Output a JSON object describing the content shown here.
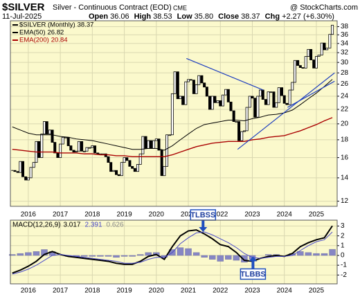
{
  "chart_data": [
    {
      "type": "candlestick",
      "title": "$SILVER",
      "subtitle": "Silver - Continuous Contract (EOD)",
      "exchange": "CME",
      "source": "@ StockCharts.com",
      "date": "11-Jul-2025",
      "quote": [
        {
          "label": "Open",
          "value": "36.06"
        },
        {
          "label": "High",
          "value": "38.53"
        },
        {
          "label": "Low",
          "value": "35.80"
        },
        {
          "label": "Close",
          "value": "38.37"
        },
        {
          "label": "Chg",
          "value": "+2.27 (+6.30%)"
        }
      ],
      "x": [
        2015.5,
        2015.58,
        2015.67,
        2015.75,
        2015.83,
        2015.92,
        2016.0,
        2016.08,
        2016.17,
        2016.25,
        2016.33,
        2016.42,
        2016.5,
        2016.58,
        2016.67,
        2016.75,
        2016.83,
        2016.92,
        2017.0,
        2017.08,
        2017.17,
        2017.25,
        2017.33,
        2017.42,
        2017.5,
        2017.58,
        2017.67,
        2017.75,
        2017.83,
        2017.92,
        2018.0,
        2018.08,
        2018.17,
        2018.25,
        2018.33,
        2018.42,
        2018.5,
        2018.58,
        2018.67,
        2018.75,
        2018.83,
        2018.92,
        2019.0,
        2019.08,
        2019.17,
        2019.25,
        2019.33,
        2019.42,
        2019.5,
        2019.58,
        2019.67,
        2019.75,
        2019.83,
        2019.92,
        2020.0,
        2020.08,
        2020.17,
        2020.25,
        2020.33,
        2020.42,
        2020.5,
        2020.58,
        2020.67,
        2020.75,
        2020.83,
        2020.92,
        2021.0,
        2021.08,
        2021.17,
        2021.25,
        2021.33,
        2021.42,
        2021.5,
        2021.58,
        2021.67,
        2021.75,
        2021.83,
        2021.92,
        2022.0,
        2022.08,
        2022.17,
        2022.25,
        2022.33,
        2022.42,
        2022.5,
        2022.58,
        2022.67,
        2022.75,
        2022.83,
        2022.92,
        2023.0,
        2023.08,
        2023.17,
        2023.25,
        2023.33,
        2023.42,
        2023.5,
        2023.58,
        2023.67,
        2023.75,
        2023.83,
        2023.92,
        2024.0,
        2024.08,
        2024.17,
        2024.25,
        2024.33,
        2024.42,
        2024.5,
        2024.58,
        2024.67,
        2024.75,
        2024.83,
        2024.92,
        2025.0,
        2025.08,
        2025.17,
        2025.25,
        2025.33,
        2025.42,
        2025.5
      ],
      "series": [
        {
          "name": "$SILVER (Monthly)",
          "color": "#000000",
          "values": [
            14.7,
            14.6,
            14.5,
            15.6,
            14.1,
            13.8,
            14.0,
            15.0,
            15.5,
            17.8,
            16.0,
            18.7,
            20.3,
            18.7,
            19.2,
            17.7,
            16.5,
            16.0,
            17.5,
            18.3,
            18.3,
            17.3,
            16.8,
            16.6,
            16.7,
            17.8,
            16.7,
            16.7,
            17.1,
            17.1,
            17.3,
            16.5,
            16.4,
            16.4,
            16.4,
            16.1,
            15.5,
            14.6,
            14.7,
            14.3,
            14.2,
            15.5,
            16.0,
            15.7,
            15.1,
            14.9,
            14.6,
            15.3,
            16.4,
            18.4,
            17.0,
            17.9,
            17.0,
            17.9,
            18.1,
            16.8,
            14.2,
            15.1,
            18.6,
            18.6,
            24.4,
            28.2,
            23.6,
            24.0,
            22.7,
            26.4,
            26.8,
            26.7,
            24.4,
            25.9,
            27.5,
            26.2,
            25.5,
            24.0,
            22.0,
            24.0,
            23.0,
            23.3,
            22.5,
            24.2,
            25.1,
            23.1,
            21.8,
            20.3,
            20.3,
            17.9,
            19.0,
            19.1,
            22.3,
            24.0,
            23.7,
            20.9,
            24.0,
            25.0,
            23.5,
            22.7,
            24.7,
            24.7,
            22.3,
            23.0,
            25.4,
            24.1,
            22.9,
            22.7,
            25.0,
            26.3,
            30.4,
            29.4,
            29.0,
            28.9,
            31.2,
            32.7,
            30.5,
            28.9,
            31.2,
            31.5,
            34.1,
            32.6,
            33.0,
            36.1,
            38.37
          ]
        }
      ],
      "overlays": [
        {
          "name": "EMA(50)",
          "color": "#000000",
          "x": [
            2015.5,
            2015.75,
            2016,
            2016.25,
            2016.5,
            2016.75,
            2017,
            2017.25,
            2017.5,
            2017.75,
            2018,
            2018.25,
            2018.5,
            2018.75,
            2019,
            2019.25,
            2019.5,
            2019.75,
            2020,
            2020.25,
            2020.5,
            2020.75,
            2021,
            2021.25,
            2021.5,
            2021.75,
            2022,
            2022.25,
            2022.5,
            2022.75,
            2023,
            2023.25,
            2023.5,
            2023.75,
            2024,
            2024.25,
            2024.5,
            2024.75,
            2025,
            2025.25,
            2025.5
          ],
          "values": [
            19.6,
            19.2,
            18.8,
            18.6,
            18.6,
            18.6,
            18.4,
            18.3,
            18.1,
            18.0,
            17.9,
            17.7,
            17.5,
            17.3,
            17.1,
            16.9,
            16.9,
            17.0,
            17.0,
            16.8,
            17.3,
            18.0,
            18.7,
            19.4,
            19.9,
            20.1,
            20.3,
            20.5,
            20.5,
            20.4,
            20.7,
            20.9,
            21.2,
            21.3,
            21.5,
            21.9,
            22.7,
            23.6,
            24.5,
            25.6,
            26.82
          ]
        },
        {
          "name": "EMA(200)",
          "color": "#aa0000",
          "x": [
            2015.5,
            2015.75,
            2016,
            2016.25,
            2016.5,
            2016.75,
            2017,
            2017.25,
            2017.5,
            2017.75,
            2018,
            2018.25,
            2018.5,
            2018.75,
            2019,
            2019.25,
            2019.5,
            2019.75,
            2020,
            2020.25,
            2020.5,
            2020.75,
            2021,
            2021.25,
            2021.5,
            2021.75,
            2022,
            2022.25,
            2022.5,
            2022.75,
            2023,
            2023.25,
            2023.5,
            2023.75,
            2024,
            2024.25,
            2024.5,
            2024.75,
            2025,
            2025.25,
            2025.5
          ],
          "values": [
            16.9,
            16.8,
            16.7,
            16.6,
            16.6,
            16.6,
            16.5,
            16.5,
            16.5,
            16.4,
            16.4,
            16.3,
            16.3,
            16.2,
            16.2,
            16.1,
            16.1,
            16.1,
            16.1,
            16.1,
            16.3,
            16.6,
            16.9,
            17.2,
            17.4,
            17.6,
            17.7,
            17.8,
            17.8,
            17.8,
            18.0,
            18.1,
            18.3,
            18.4,
            18.5,
            18.8,
            19.1,
            19.5,
            19.9,
            20.4,
            20.84
          ]
        }
      ],
      "trendlines": [
        {
          "color": "#1f3fbf",
          "x": [
            2020.94,
            2023.34
          ],
          "y": [
            30.8,
            25.0
          ]
        },
        {
          "color": "#1f3fbf",
          "x": [
            2022.54,
            2025.57
          ],
          "y": [
            16.9,
            28.0
          ]
        },
        {
          "color": "#1f3fbf",
          "x": [
            2024.1,
            2025.57
          ],
          "y": [
            22.3,
            26.5
          ]
        }
      ],
      "log_scale": true,
      "xlim": [
        2015.44,
        2025.65
      ],
      "xticks": [
        2016,
        2017,
        2018,
        2019,
        2020,
        2021,
        2022,
        2023,
        2024,
        2025
      ],
      "ylim": [
        11.6,
        39.5
      ],
      "yticks": [
        12,
        14,
        16,
        18,
        20,
        22,
        24,
        26,
        28,
        30,
        32,
        34,
        36,
        38
      ],
      "grid": true,
      "legend": "upper left",
      "background": "#fbf9cc"
    },
    {
      "type": "macd",
      "x": [
        2015.5,
        2015.75,
        2016,
        2016.25,
        2016.5,
        2016.75,
        2017,
        2017.25,
        2017.5,
        2017.75,
        2018,
        2018.25,
        2018.5,
        2018.75,
        2019,
        2019.25,
        2019.5,
        2019.75,
        2020,
        2020.25,
        2020.5,
        2020.75,
        2021,
        2021.25,
        2021.5,
        2021.75,
        2022,
        2022.25,
        2022.5,
        2022.75,
        2023,
        2023.25,
        2023.5,
        2023.75,
        2024,
        2024.25,
        2024.5,
        2024.75,
        2025,
        2025.25,
        2025.5
      ],
      "series": [
        {
          "name": "MACD(12,26,9)",
          "color": "#000000",
          "style": "line",
          "values": [
            -1.8,
            -1.5,
            -1.1,
            -0.6,
            0.1,
            0.4,
            0.1,
            -0.1,
            -0.2,
            -0.3,
            -0.4,
            -0.5,
            -0.6,
            -0.8,
            -0.9,
            -0.9,
            -0.6,
            -0.1,
            0.1,
            -0.4,
            0.9,
            2.0,
            2.5,
            2.6,
            2.2,
            1.7,
            1.1,
            0.9,
            0.3,
            -0.5,
            -0.6,
            -0.3,
            -0.1,
            0.0,
            -0.1,
            0.2,
            0.9,
            1.3,
            1.6,
            1.8,
            3.017
          ]
        },
        {
          "name": "Signal",
          "color": "#4a4ac8",
          "style": "line",
          "values": [
            -1.9,
            -1.7,
            -1.4,
            -1.0,
            -0.5,
            0.0,
            0.1,
            0.0,
            -0.1,
            -0.2,
            -0.3,
            -0.4,
            -0.5,
            -0.6,
            -0.8,
            -0.8,
            -0.7,
            -0.4,
            -0.2,
            -0.2,
            0.3,
            1.2,
            1.8,
            2.3,
            2.4,
            2.1,
            1.7,
            1.3,
            0.8,
            0.2,
            -0.2,
            -0.3,
            -0.2,
            -0.1,
            -0.1,
            0.0,
            0.5,
            1.0,
            1.4,
            1.6,
            2.391
          ]
        },
        {
          "name": "Histogram",
          "color": "#8686c4",
          "style": "bar",
          "values": [
            0.1,
            0.2,
            0.3,
            0.4,
            0.6,
            0.4,
            0.0,
            -0.1,
            -0.1,
            -0.1,
            -0.1,
            -0.1,
            -0.1,
            -0.2,
            -0.1,
            -0.1,
            0.1,
            0.3,
            0.3,
            -0.2,
            0.6,
            0.8,
            0.7,
            0.3,
            -0.2,
            -0.4,
            -0.6,
            -0.4,
            -0.5,
            -0.7,
            -0.4,
            0.0,
            0.1,
            0.1,
            0.0,
            0.2,
            0.4,
            0.3,
            0.2,
            0.2,
            0.626
          ]
        }
      ],
      "annotations": [
        {
          "text": "TLBSS",
          "x": 2021.46,
          "y": 2.4,
          "arrow": "down"
        },
        {
          "text": "TLBBS",
          "x": 2023.02,
          "y": -0.1,
          "arrow": "up"
        }
      ],
      "xlim": [
        2015.44,
        2025.65
      ],
      "xticks": [
        2016,
        2017,
        2018,
        2019,
        2020,
        2021,
        2022,
        2023,
        2024,
        2025
      ],
      "ylim": [
        -2.9,
        3.6
      ],
      "yticks": [
        3,
        2,
        1,
        0,
        -1,
        -2
      ],
      "grid": true,
      "background": "#fbf9cc"
    }
  ]
}
